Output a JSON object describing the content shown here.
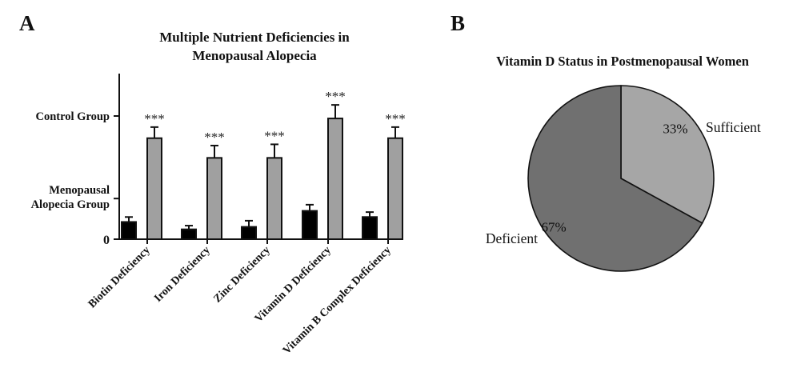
{
  "panels": {
    "a_letter": "A",
    "b_letter": "B"
  },
  "chart_data": [
    {
      "type": "bar",
      "title": "Multiple Nutrient Deficiencies in Menopausal Alopecia",
      "title_lines": [
        "Multiple Nutrient Deficiencies in",
        "Menopausal Alopecia"
      ],
      "xlabel": "",
      "ylabel": "",
      "ylim": [
        0,
        1.3
      ],
      "yticks": [
        {
          "value": 0,
          "label": "0"
        },
        {
          "value": 0.33,
          "label_lines": [
            "Menopausal",
            "Alopecia Group"
          ]
        },
        {
          "value": 1.0,
          "label_lines": [
            "Control Group"
          ]
        }
      ],
      "categories": [
        "Biotin Deficiency",
        "Iron Deficiency",
        "Zinc Deficiency",
        "Vitamin D Deficiency",
        "Vitamin B Complex Deficiency"
      ],
      "series": [
        {
          "name": "Menopausal Alopecia Group",
          "color": "#000000",
          "values": [
            0.14,
            0.08,
            0.1,
            0.23,
            0.18
          ],
          "errors": [
            0.04,
            0.03,
            0.05,
            0.05,
            0.04
          ]
        },
        {
          "name": "Control Group",
          "color": "#a0a0a0",
          "values": [
            0.82,
            0.66,
            0.66,
            0.98,
            0.82
          ],
          "errors": [
            0.09,
            0.1,
            0.11,
            0.11,
            0.09
          ]
        }
      ],
      "annotations": [
        "***",
        "***",
        "***",
        "***",
        "***"
      ],
      "grid": false,
      "legend": "none"
    },
    {
      "type": "pie",
      "title": "Vitamin D Status in Postmenopausal Women",
      "slices": [
        {
          "label": "Sufficient",
          "value": 33,
          "pct_label": "33%",
          "color": "#a6a6a6"
        },
        {
          "label": "Deficient",
          "value": 67,
          "pct_label": "67%",
          "color": "#707070"
        }
      ],
      "legend": "none"
    }
  ]
}
